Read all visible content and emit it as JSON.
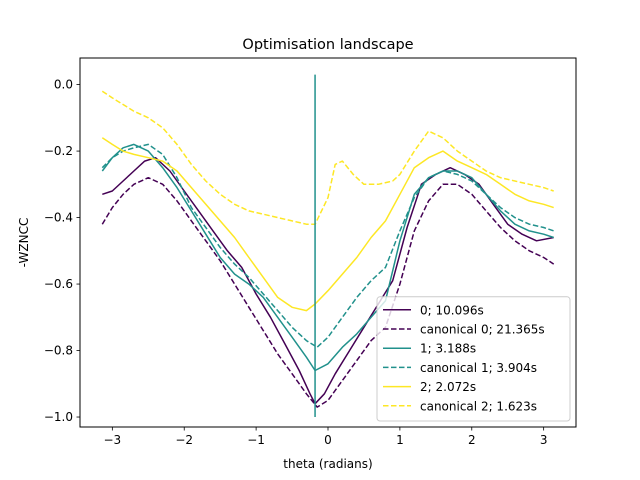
{
  "chart_data": {
    "type": "line",
    "title": "Optimisation landscape",
    "xlabel": "theta (radians)",
    "ylabel": "-WZNCC",
    "xlim": [
      -3.45,
      3.45
    ],
    "ylim": [
      -1.03,
      0.08
    ],
    "xticks": [
      -3,
      -2,
      -1,
      0,
      1,
      2,
      3
    ],
    "xtick_labels": [
      "−3",
      "−2",
      "−1",
      "0",
      "1",
      "2",
      "3"
    ],
    "yticks": [
      0.0,
      -0.2,
      -0.4,
      -0.6,
      -0.8,
      -1.0
    ],
    "ytick_labels": [
      "0.0",
      "−0.2",
      "−0.4",
      "−0.6",
      "−0.8",
      "−1.0"
    ],
    "grid": false,
    "legend_position": "lower-right",
    "vline": {
      "x": -0.18,
      "ymin": -1.0,
      "ymax": 0.03,
      "color": "#21918c"
    },
    "series": [
      {
        "name": "0; 10.096s",
        "color": "#440154",
        "dash": "solid",
        "x": [
          -3.14,
          -3.0,
          -2.85,
          -2.7,
          -2.55,
          -2.4,
          -2.2,
          -2.0,
          -1.8,
          -1.6,
          -1.4,
          -1.2,
          -1.0,
          -0.8,
          -0.6,
          -0.4,
          -0.25,
          -0.18,
          -0.05,
          0.1,
          0.3,
          0.5,
          0.7,
          0.9,
          1.1,
          1.3,
          1.5,
          1.7,
          1.9,
          2.1,
          2.3,
          2.5,
          2.7,
          2.9,
          3.14
        ],
        "y": [
          -0.33,
          -0.32,
          -0.29,
          -0.26,
          -0.23,
          -0.22,
          -0.26,
          -0.32,
          -0.38,
          -0.44,
          -0.5,
          -0.55,
          -0.63,
          -0.7,
          -0.78,
          -0.86,
          -0.93,
          -0.96,
          -0.93,
          -0.87,
          -0.8,
          -0.73,
          -0.66,
          -0.59,
          -0.43,
          -0.3,
          -0.27,
          -0.25,
          -0.27,
          -0.3,
          -0.36,
          -0.42,
          -0.45,
          -0.47,
          -0.46
        ]
      },
      {
        "name": "canonical 0; 21.365s",
        "color": "#440154",
        "dash": "dashed",
        "x": [
          -3.14,
          -3.0,
          -2.85,
          -2.7,
          -2.5,
          -2.3,
          -2.1,
          -1.9,
          -1.7,
          -1.5,
          -1.3,
          -1.1,
          -0.9,
          -0.7,
          -0.5,
          -0.3,
          -0.15,
          0.0,
          0.2,
          0.4,
          0.6,
          0.8,
          1.0,
          1.2,
          1.4,
          1.6,
          1.8,
          2.0,
          2.2,
          2.4,
          2.6,
          2.8,
          3.0,
          3.14
        ],
        "y": [
          -0.42,
          -0.37,
          -0.33,
          -0.3,
          -0.28,
          -0.3,
          -0.35,
          -0.41,
          -0.47,
          -0.53,
          -0.6,
          -0.67,
          -0.74,
          -0.81,
          -0.87,
          -0.93,
          -0.97,
          -0.95,
          -0.89,
          -0.83,
          -0.77,
          -0.73,
          -0.6,
          -0.44,
          -0.35,
          -0.3,
          -0.3,
          -0.33,
          -0.38,
          -0.43,
          -0.47,
          -0.5,
          -0.52,
          -0.54
        ]
      },
      {
        "name": "1; 3.188s",
        "color": "#21918c",
        "dash": "solid",
        "x": [
          -3.14,
          -3.0,
          -2.85,
          -2.7,
          -2.5,
          -2.3,
          -2.1,
          -1.9,
          -1.7,
          -1.5,
          -1.3,
          -1.1,
          -0.9,
          -0.7,
          -0.5,
          -0.3,
          -0.18,
          0.0,
          0.2,
          0.4,
          0.6,
          0.8,
          1.0,
          1.2,
          1.4,
          1.6,
          1.8,
          2.0,
          2.2,
          2.4,
          2.6,
          2.8,
          3.0,
          3.14
        ],
        "y": [
          -0.26,
          -0.22,
          -0.19,
          -0.18,
          -0.2,
          -0.25,
          -0.31,
          -0.38,
          -0.45,
          -0.52,
          -0.57,
          -0.6,
          -0.64,
          -0.7,
          -0.76,
          -0.82,
          -0.86,
          -0.84,
          -0.79,
          -0.75,
          -0.7,
          -0.65,
          -0.47,
          -0.33,
          -0.28,
          -0.26,
          -0.26,
          -0.28,
          -0.33,
          -0.38,
          -0.42,
          -0.44,
          -0.45,
          -0.46
        ]
      },
      {
        "name": "canonical 1; 3.904s",
        "color": "#21918c",
        "dash": "dashed",
        "x": [
          -3.14,
          -3.0,
          -2.85,
          -2.7,
          -2.5,
          -2.3,
          -2.1,
          -1.9,
          -1.7,
          -1.5,
          -1.3,
          -1.1,
          -0.9,
          -0.7,
          -0.5,
          -0.3,
          -0.15,
          0.0,
          0.2,
          0.4,
          0.6,
          0.8,
          1.0,
          1.2,
          1.4,
          1.6,
          1.8,
          2.0,
          2.2,
          2.4,
          2.6,
          2.8,
          3.0,
          3.14
        ],
        "y": [
          -0.25,
          -0.22,
          -0.2,
          -0.19,
          -0.18,
          -0.21,
          -0.28,
          -0.37,
          -0.43,
          -0.49,
          -0.54,
          -0.58,
          -0.63,
          -0.68,
          -0.73,
          -0.77,
          -0.79,
          -0.76,
          -0.7,
          -0.64,
          -0.59,
          -0.55,
          -0.44,
          -0.34,
          -0.28,
          -0.26,
          -0.27,
          -0.29,
          -0.33,
          -0.37,
          -0.4,
          -0.42,
          -0.43,
          -0.44
        ]
      },
      {
        "name": "2; 2.072s",
        "color": "#fde725",
        "dash": "solid",
        "x": [
          -3.14,
          -3.0,
          -2.85,
          -2.7,
          -2.5,
          -2.3,
          -2.1,
          -1.9,
          -1.7,
          -1.5,
          -1.3,
          -1.1,
          -0.9,
          -0.7,
          -0.5,
          -0.3,
          -0.18,
          0.0,
          0.2,
          0.4,
          0.6,
          0.8,
          1.0,
          1.2,
          1.4,
          1.6,
          1.8,
          2.0,
          2.2,
          2.4,
          2.6,
          2.8,
          3.0,
          3.14
        ],
        "y": [
          -0.16,
          -0.18,
          -0.2,
          -0.21,
          -0.22,
          -0.23,
          -0.26,
          -0.31,
          -0.36,
          -0.41,
          -0.46,
          -0.52,
          -0.58,
          -0.64,
          -0.67,
          -0.68,
          -0.66,
          -0.62,
          -0.57,
          -0.52,
          -0.46,
          -0.41,
          -0.33,
          -0.25,
          -0.22,
          -0.2,
          -0.23,
          -0.25,
          -0.27,
          -0.3,
          -0.33,
          -0.35,
          -0.36,
          -0.37
        ]
      },
      {
        "name": "canonical 2; 1.623s",
        "color": "#fde725",
        "dash": "dashed",
        "x": [
          -3.14,
          -3.0,
          -2.85,
          -2.7,
          -2.5,
          -2.3,
          -2.1,
          -1.9,
          -1.7,
          -1.5,
          -1.3,
          -1.1,
          -0.9,
          -0.7,
          -0.5,
          -0.3,
          -0.18,
          0.0,
          0.1,
          0.2,
          0.35,
          0.5,
          0.7,
          0.9,
          1.0,
          1.2,
          1.4,
          1.6,
          1.8,
          2.0,
          2.2,
          2.4,
          2.6,
          2.8,
          3.0,
          3.14
        ],
        "y": [
          -0.02,
          -0.04,
          -0.06,
          -0.08,
          -0.1,
          -0.13,
          -0.18,
          -0.24,
          -0.29,
          -0.33,
          -0.36,
          -0.38,
          -0.39,
          -0.4,
          -0.41,
          -0.42,
          -0.42,
          -0.34,
          -0.24,
          -0.23,
          -0.27,
          -0.3,
          -0.3,
          -0.29,
          -0.27,
          -0.2,
          -0.14,
          -0.16,
          -0.2,
          -0.23,
          -0.26,
          -0.28,
          -0.29,
          -0.3,
          -0.31,
          -0.32
        ]
      }
    ]
  }
}
